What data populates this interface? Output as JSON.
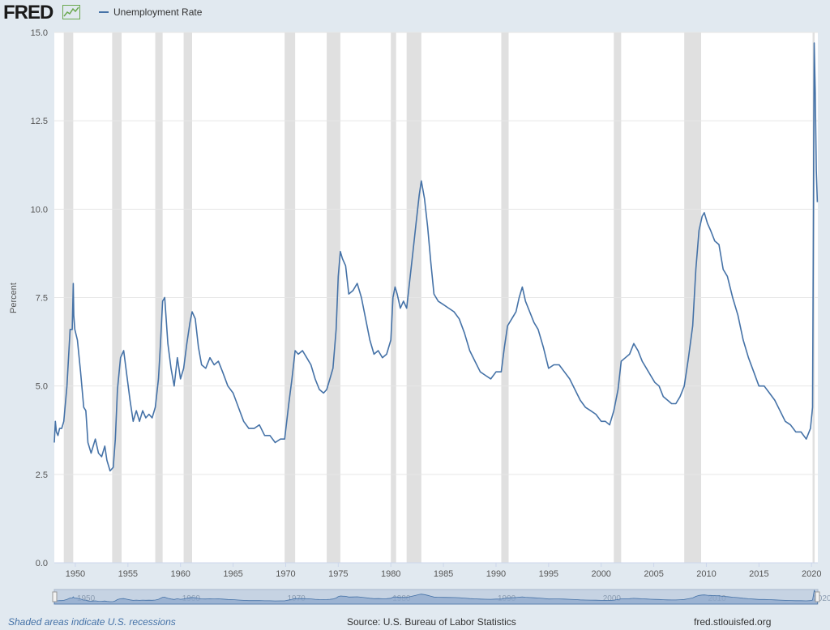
{
  "header": {
    "logo": "FRED",
    "legend_label": "Unemployment Rate"
  },
  "footer": {
    "note": "Shaded areas indicate U.S. recessions",
    "source": "Source: U.S. Bureau of Labor Statistics",
    "site": "fred.stlouisfed.org"
  },
  "colors": {
    "line": "#4572a7",
    "recession": "#e0e0e0",
    "plot_bg": "#ffffff",
    "page_bg": "#e1e9f0"
  },
  "chart_data": {
    "type": "line",
    "title": "",
    "xlabel": "",
    "ylabel": "Percent",
    "xlim": [
      1948.0,
      2020.6
    ],
    "ylim": [
      0,
      15
    ],
    "y_ticks": [
      "0.0",
      "2.5",
      "5.0",
      "7.5",
      "10.0",
      "12.5",
      "15.0"
    ],
    "x_ticks": [
      "1950",
      "1955",
      "1960",
      "1965",
      "1970",
      "1975",
      "1980",
      "1985",
      "1990",
      "1995",
      "2000",
      "2005",
      "2010",
      "2015",
      "2020"
    ],
    "navigator_labels": [
      "1950",
      "1960",
      "1970",
      "1980",
      "1990",
      "2000",
      "2010",
      "2020"
    ],
    "grid": "horizontal",
    "legend_position": "top-left",
    "recessions": [
      [
        1948.9,
        1949.8
      ],
      [
        1953.5,
        1954.4
      ],
      [
        1957.6,
        1958.3
      ],
      [
        1960.3,
        1961.1
      ],
      [
        1969.9,
        1970.9
      ],
      [
        1973.9,
        1975.2
      ],
      [
        1980.0,
        1980.5
      ],
      [
        1981.5,
        1982.9
      ],
      [
        1990.5,
        1991.2
      ],
      [
        2001.2,
        2001.9
      ],
      [
        2007.9,
        2009.5
      ],
      [
        2020.1,
        2020.3
      ]
    ],
    "series": [
      {
        "name": "Unemployment Rate",
        "x": [
          1948.0,
          1948.1,
          1948.2,
          1948.35,
          1948.5,
          1948.7,
          1948.9,
          1949.2,
          1949.5,
          1949.7,
          1949.8,
          1949.85,
          1949.95,
          1950.2,
          1950.5,
          1950.8,
          1951.0,
          1951.2,
          1951.5,
          1951.7,
          1951.9,
          1952.2,
          1952.5,
          1952.8,
          1953.0,
          1953.3,
          1953.6,
          1953.8,
          1954.0,
          1954.3,
          1954.6,
          1954.9,
          1955.2,
          1955.5,
          1955.8,
          1956.1,
          1956.4,
          1956.7,
          1957.0,
          1957.3,
          1957.6,
          1957.9,
          1958.1,
          1958.3,
          1958.5,
          1958.8,
          1959.1,
          1959.4,
          1959.7,
          1960.0,
          1960.3,
          1960.6,
          1960.9,
          1961.1,
          1961.4,
          1961.7,
          1962.0,
          1962.4,
          1962.8,
          1963.2,
          1963.6,
          1964.0,
          1964.5,
          1965.0,
          1965.5,
          1966.0,
          1966.5,
          1967.0,
          1967.5,
          1968.0,
          1968.5,
          1969.0,
          1969.5,
          1969.9,
          1970.3,
          1970.6,
          1970.9,
          1971.2,
          1971.6,
          1972.0,
          1972.4,
          1972.8,
          1973.2,
          1973.6,
          1973.9,
          1974.2,
          1974.5,
          1974.8,
          1975.0,
          1975.2,
          1975.4,
          1975.7,
          1976.0,
          1976.4,
          1976.8,
          1977.2,
          1977.6,
          1978.0,
          1978.4,
          1978.8,
          1979.2,
          1979.6,
          1980.0,
          1980.2,
          1980.4,
          1980.6,
          1980.9,
          1981.2,
          1981.5,
          1981.8,
          1982.1,
          1982.4,
          1982.7,
          1982.9,
          1983.2,
          1983.5,
          1983.8,
          1984.1,
          1984.5,
          1985.0,
          1985.5,
          1986.0,
          1986.5,
          1987.0,
          1987.5,
          1988.0,
          1988.5,
          1989.0,
          1989.5,
          1990.0,
          1990.5,
          1990.8,
          1991.1,
          1991.5,
          1991.9,
          1992.2,
          1992.5,
          1992.8,
          1993.2,
          1993.6,
          1994.0,
          1994.5,
          1995.0,
          1995.5,
          1996.0,
          1996.5,
          1997.0,
          1997.5,
          1998.0,
          1998.5,
          1999.0,
          1999.5,
          2000.0,
          2000.4,
          2000.8,
          2001.2,
          2001.6,
          2001.9,
          2002.3,
          2002.7,
          2003.1,
          2003.5,
          2003.9,
          2004.3,
          2004.7,
          2005.1,
          2005.5,
          2005.9,
          2006.3,
          2006.7,
          2007.1,
          2007.5,
          2007.9,
          2008.3,
          2008.7,
          2009.0,
          2009.3,
          2009.6,
          2009.8,
          2010.1,
          2010.4,
          2010.8,
          2011.2,
          2011.6,
          2012.0,
          2012.5,
          2013.0,
          2013.5,
          2014.0,
          2014.5,
          2015.0,
          2015.5,
          2016.0,
          2016.5,
          2017.0,
          2017.5,
          2018.0,
          2018.5,
          2019.0,
          2019.5,
          2019.9,
          2020.1,
          2020.25,
          2020.35,
          2020.45,
          2020.55
        ],
        "values": [
          3.4,
          4.0,
          3.7,
          3.6,
          3.8,
          3.8,
          4.0,
          5.0,
          6.6,
          6.6,
          7.9,
          7.0,
          6.6,
          6.3,
          5.4,
          4.4,
          4.3,
          3.4,
          3.1,
          3.3,
          3.5,
          3.1,
          3.0,
          3.3,
          2.9,
          2.6,
          2.7,
          3.5,
          4.9,
          5.8,
          6.0,
          5.3,
          4.6,
          4.0,
          4.3,
          4.0,
          4.3,
          4.1,
          4.2,
          4.1,
          4.4,
          5.2,
          6.2,
          7.4,
          7.5,
          6.2,
          5.5,
          5.0,
          5.8,
          5.2,
          5.5,
          6.2,
          6.8,
          7.1,
          6.9,
          6.1,
          5.6,
          5.5,
          5.8,
          5.6,
          5.7,
          5.4,
          5.0,
          4.8,
          4.4,
          4.0,
          3.8,
          3.8,
          3.9,
          3.6,
          3.6,
          3.4,
          3.5,
          3.5,
          4.5,
          5.2,
          6.0,
          5.9,
          6.0,
          5.8,
          5.6,
          5.2,
          4.9,
          4.8,
          4.9,
          5.2,
          5.5,
          6.6,
          8.1,
          8.8,
          8.6,
          8.4,
          7.6,
          7.7,
          7.9,
          7.5,
          6.9,
          6.3,
          5.9,
          6.0,
          5.8,
          5.9,
          6.3,
          7.5,
          7.8,
          7.6,
          7.2,
          7.4,
          7.2,
          8.0,
          8.8,
          9.6,
          10.4,
          10.8,
          10.3,
          9.5,
          8.5,
          7.6,
          7.4,
          7.3,
          7.2,
          7.1,
          6.9,
          6.5,
          6.0,
          5.7,
          5.4,
          5.3,
          5.2,
          5.4,
          5.4,
          6.1,
          6.7,
          6.9,
          7.1,
          7.5,
          7.8,
          7.4,
          7.1,
          6.8,
          6.6,
          6.1,
          5.5,
          5.6,
          5.6,
          5.4,
          5.2,
          4.9,
          4.6,
          4.4,
          4.3,
          4.2,
          4.0,
          4.0,
          3.9,
          4.3,
          4.9,
          5.7,
          5.8,
          5.9,
          6.2,
          6.0,
          5.7,
          5.5,
          5.3,
          5.1,
          5.0,
          4.7,
          4.6,
          4.5,
          4.5,
          4.7,
          5.0,
          5.8,
          6.7,
          8.3,
          9.4,
          9.8,
          9.9,
          9.6,
          9.4,
          9.1,
          9.0,
          8.3,
          8.1,
          7.5,
          7.0,
          6.3,
          5.8,
          5.4,
          5.0,
          5.0,
          4.8,
          4.6,
          4.3,
          4.0,
          3.9,
          3.7,
          3.7,
          3.5,
          3.8,
          4.4,
          14.7,
          13.3,
          11.1,
          10.2
        ]
      }
    ]
  }
}
